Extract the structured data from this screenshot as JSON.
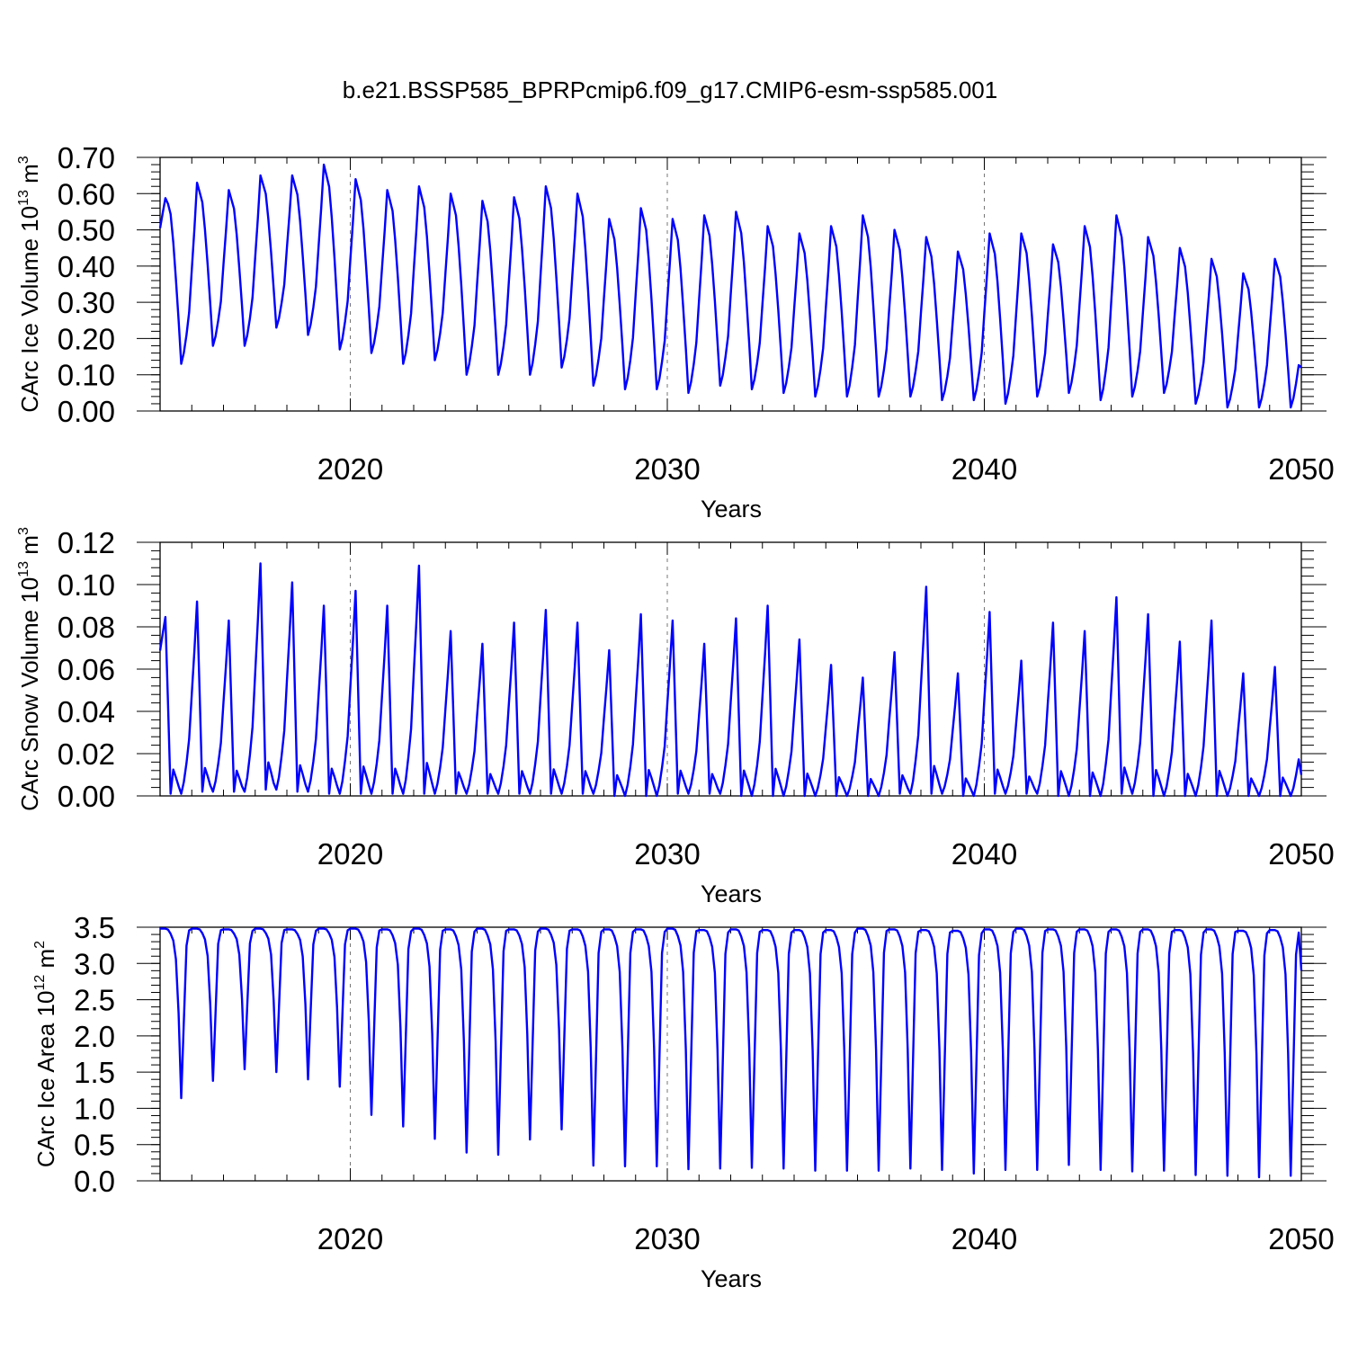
{
  "figure_title": "b.e21.BSSP585_BPRPcmip6.f09_g17.CMIP6-esm-ssp585.001",
  "chart_data": [
    {
      "type": "line",
      "ylabel": "CArc Ice Volume 10",
      "ylabel_exp": "13",
      "ylabel_unit": " m",
      "ylabel_unit_exp": "3",
      "xlabel": "Years",
      "xlim": [
        2014.0,
        2050.0
      ],
      "ylim": [
        0.0,
        0.7
      ],
      "x_ticks": [
        2020,
        2030,
        2040,
        2050
      ],
      "x_tick_labels": [
        "2020",
        "2030",
        "2040",
        "2050"
      ],
      "y_ticks": [
        0.0,
        0.1,
        0.2,
        0.3,
        0.4,
        0.5,
        0.6,
        0.7
      ],
      "y_tick_labels": [
        "0.00",
        "0.10",
        "0.20",
        "0.30",
        "0.40",
        "0.50",
        "0.60",
        "0.70"
      ],
      "y_minor_step": 0.02,
      "x_minor_step": 1,
      "grid_x": [
        2020,
        2030,
        2040
      ],
      "series": [
        {
          "name": "CArc Ice Volume",
          "color": "#0000ff",
          "start": 2014.0,
          "annual_max": [
            0.6,
            0.63,
            0.61,
            0.65,
            0.65,
            0.68,
            0.64,
            0.61,
            0.62,
            0.6,
            0.58,
            0.59,
            0.62,
            0.6,
            0.53,
            0.56,
            0.53,
            0.54,
            0.55,
            0.51,
            0.49,
            0.51,
            0.54,
            0.5,
            0.48,
            0.44,
            0.49,
            0.49,
            0.46,
            0.51,
            0.54,
            0.48,
            0.45,
            0.42,
            0.38,
            0.42
          ],
          "annual_min": [
            0.13,
            0.18,
            0.18,
            0.23,
            0.21,
            0.17,
            0.16,
            0.13,
            0.14,
            0.1,
            0.1,
            0.1,
            0.12,
            0.07,
            0.06,
            0.06,
            0.05,
            0.07,
            0.06,
            0.05,
            0.04,
            0.04,
            0.04,
            0.04,
            0.03,
            0.03,
            0.02,
            0.04,
            0.05,
            0.03,
            0.04,
            0.05,
            0.02,
            0.01,
            0.01,
            0.01
          ],
          "end_value": 0.12
        }
      ]
    },
    {
      "type": "line",
      "ylabel": "CArc Snow Volume 10",
      "ylabel_exp": "13",
      "ylabel_unit": " m",
      "ylabel_unit_exp": "3",
      "xlabel": "Years",
      "xlim": [
        2014.0,
        2050.0
      ],
      "ylim": [
        0.0,
        0.12
      ],
      "x_ticks": [
        2020,
        2030,
        2040,
        2050
      ],
      "x_tick_labels": [
        "2020",
        "2030",
        "2040",
        "2050"
      ],
      "y_ticks": [
        0.0,
        0.02,
        0.04,
        0.06,
        0.08,
        0.1,
        0.12
      ],
      "y_tick_labels": [
        "0.00",
        "0.02",
        "0.04",
        "0.06",
        "0.08",
        "0.10",
        "0.12"
      ],
      "y_minor_step": 0.004,
      "x_minor_step": 1,
      "grid_x": [
        2020,
        2030,
        2040
      ],
      "series": [
        {
          "name": "CArc Snow Volume",
          "color": "#0000ff",
          "start": 2014.0,
          "annual_max": [
            0.087,
            0.092,
            0.083,
            0.11,
            0.101,
            0.09,
            0.097,
            0.09,
            0.109,
            0.078,
            0.072,
            0.082,
            0.088,
            0.082,
            0.069,
            0.086,
            0.083,
            0.072,
            0.084,
            0.09,
            0.074,
            0.062,
            0.056,
            0.068,
            0.099,
            0.058,
            0.087,
            0.064,
            0.082,
            0.078,
            0.094,
            0.086,
            0.073,
            0.083,
            0.058,
            0.061
          ],
          "annual_min": [
            0.001,
            0.002,
            0.002,
            0.003,
            0.002,
            0.001,
            0.001,
            0.001,
            0.001,
            0.001,
            0.001,
            0.001,
            0.001,
            0.001,
            0.0,
            0.0,
            0.001,
            0.001,
            0.0,
            0.0,
            0.0,
            0.0,
            0.0,
            0.001,
            0.001,
            0.0,
            0.001,
            0.001,
            0.0,
            0.0,
            0.001,
            0.0,
            0.0,
            0.0,
            0.0,
            0.0
          ],
          "end_value": 0.01
        }
      ]
    },
    {
      "type": "line",
      "ylabel": "CArc Ice Area 10",
      "ylabel_exp": "12",
      "ylabel_unit": " m",
      "ylabel_unit_exp": "2",
      "xlabel": "Years",
      "xlim": [
        2014.0,
        2050.0
      ],
      "ylim": [
        0.0,
        3.5
      ],
      "x_ticks": [
        2020,
        2030,
        2040,
        2050
      ],
      "x_tick_labels": [
        "2020",
        "2030",
        "2040",
        "2050"
      ],
      "y_ticks": [
        0.0,
        0.5,
        1.0,
        1.5,
        2.0,
        2.5,
        3.0,
        3.5
      ],
      "y_tick_labels": [
        "0.0",
        "0.5",
        "1.0",
        "1.5",
        "2.0",
        "2.5",
        "3.0",
        "3.5"
      ],
      "y_minor_step": 0.1,
      "x_minor_step": 1,
      "grid_x": [
        2020,
        2030,
        2040
      ],
      "series": [
        {
          "name": "CArc Ice Area",
          "color": "#0000ff",
          "start": 2014.0,
          "annual_max": [
            3.48,
            3.48,
            3.47,
            3.48,
            3.47,
            3.48,
            3.48,
            3.47,
            3.48,
            3.47,
            3.48,
            3.47,
            3.48,
            3.47,
            3.47,
            3.47,
            3.48,
            3.46,
            3.47,
            3.46,
            3.46,
            3.46,
            3.48,
            3.47,
            3.46,
            3.45,
            3.47,
            3.48,
            3.47,
            3.47,
            3.47,
            3.47,
            3.46,
            3.47,
            3.45,
            3.46
          ],
          "annual_min": [
            1.14,
            1.38,
            1.54,
            1.5,
            1.4,
            1.3,
            0.91,
            0.75,
            0.58,
            0.39,
            0.36,
            0.57,
            0.71,
            0.21,
            0.2,
            0.2,
            0.16,
            0.17,
            0.18,
            0.17,
            0.14,
            0.14,
            0.14,
            0.17,
            0.15,
            0.1,
            0.15,
            0.15,
            0.22,
            0.15,
            0.13,
            0.14,
            0.08,
            0.07,
            0.05,
            0.07
          ],
          "end_value": 2.9
        }
      ]
    }
  ]
}
